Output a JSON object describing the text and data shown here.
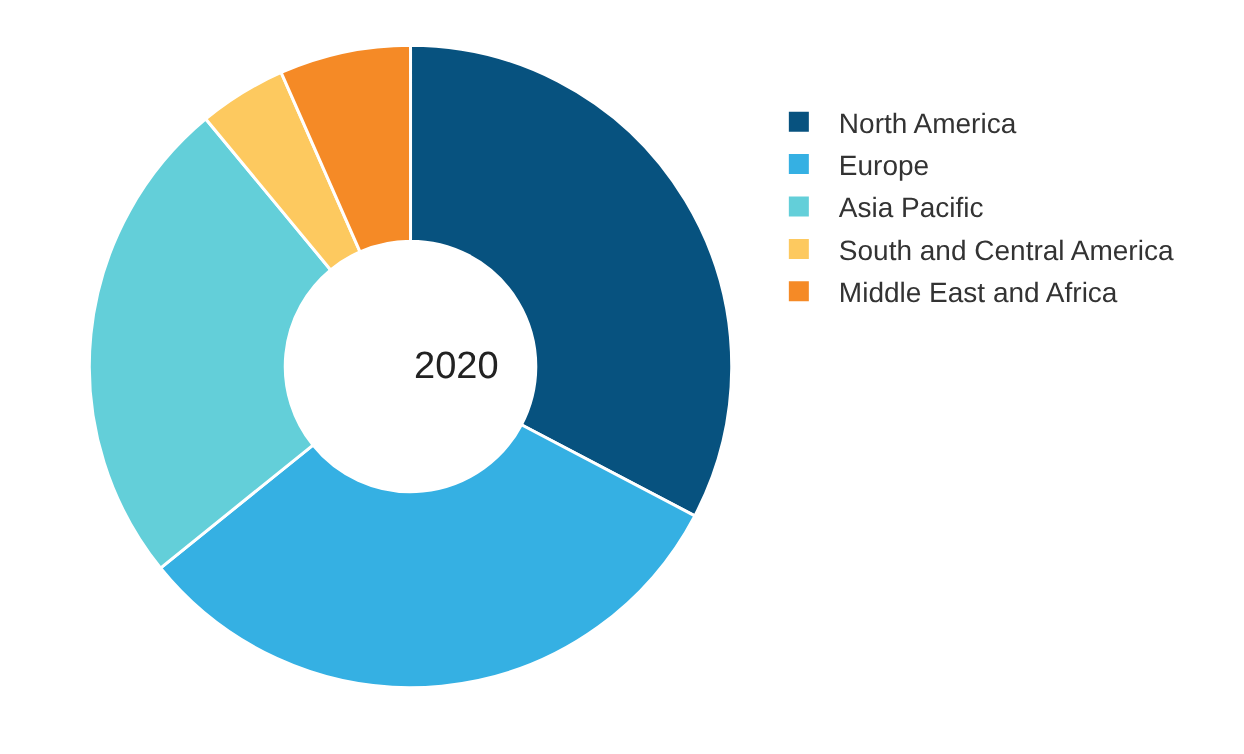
{
  "chart_data": {
    "type": "donut",
    "categories": [
      "North America",
      "Europe",
      "Asia Pacific",
      "South and Central America",
      "Middle East and Africa"
    ],
    "values": [
      32.7,
      31.5,
      24.8,
      4.4,
      6.6
    ],
    "colors": [
      "#07527f",
      "#35b0e3",
      "#63cfd9",
      "#fdc95f",
      "#f58a26"
    ],
    "annotations": [
      "2020"
    ],
    "legend": "right"
  }
}
